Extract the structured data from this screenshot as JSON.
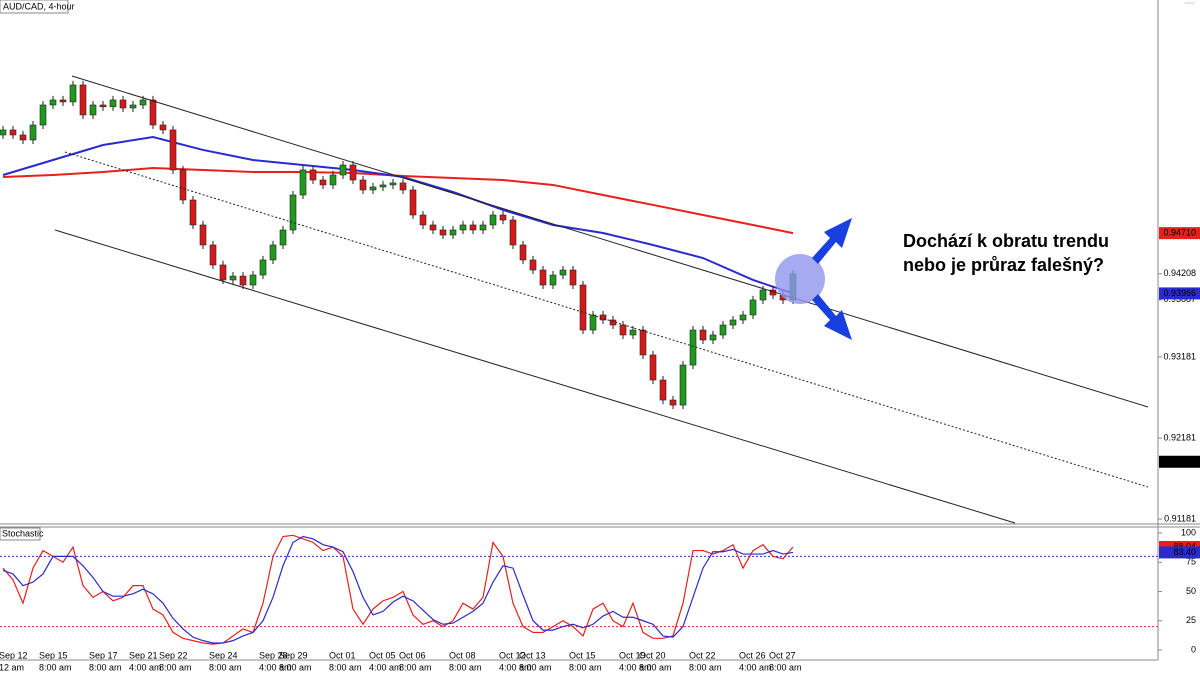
{
  "chart_data": [
    {
      "type": "candlestick",
      "title": "AUD/CAD, 4-hour",
      "annotation": [
        "Dochází k obratu trendu",
        "nebo je průraz falešný?"
      ],
      "categories": [
        "Sep 12",
        null,
        null,
        null,
        "Sep 15",
        null,
        null,
        null,
        null,
        "Sep 17",
        null,
        null,
        null,
        "Sep 21",
        null,
        null,
        "Sep 22",
        null,
        null,
        null,
        null,
        "Sep 24",
        null,
        null,
        null,
        null,
        "Sep 28",
        null,
        "Sep 29",
        null,
        null,
        null,
        null,
        "Oct 01",
        null,
        null,
        null,
        "Oct 05",
        null,
        null,
        "Oct 06",
        null,
        null,
        null,
        null,
        "Oct 08",
        null,
        null,
        null,
        null,
        "Oct 12",
        null,
        "Oct 13",
        null,
        null,
        null,
        null,
        "Oct 15",
        null,
        null,
        null,
        null,
        "Oct 19",
        null,
        "Oct 20",
        null,
        null,
        null,
        null,
        "Oct 22",
        null,
        null,
        null,
        null,
        "Oct 26",
        null,
        null,
        "Oct 27",
        null,
        null
      ],
      "times": [
        "12 am",
        null,
        null,
        null,
        "8:00 am",
        null,
        null,
        null,
        null,
        "8:00 am",
        null,
        null,
        null,
        "4:00 am",
        null,
        null,
        "8:00 am",
        null,
        null,
        null,
        null,
        "8:00 am",
        null,
        null,
        null,
        null,
        "4:00 am",
        null,
        "8:00 am",
        null,
        null,
        null,
        null,
        "8:00 am",
        null,
        null,
        null,
        "4:00 am",
        null,
        null,
        "8:00 am",
        null,
        null,
        null,
        null,
        "8:00 am",
        null,
        null,
        null,
        null,
        "4:00 am",
        null,
        "8:00 am",
        null,
        null,
        null,
        null,
        "8:00 am",
        null,
        null,
        null,
        null,
        "4:00 am",
        null,
        "8:00 am",
        null,
        null,
        null,
        null,
        "8:00 am",
        null,
        null,
        null,
        null,
        "4:00 am",
        null,
        null,
        "8:00 am",
        null,
        null
      ],
      "open": [
        0.95922,
        0.95984,
        0.95922,
        0.9586,
        0.96045,
        0.96292,
        0.96354,
        0.9633,
        0.96539,
        0.96169,
        0.96292,
        0.9627,
        0.96354,
        0.96255,
        0.96292,
        0.96354,
        0.96045,
        0.95984,
        0.9549,
        0.95119,
        0.94811,
        0.94564,
        0.94317,
        0.94132,
        0.9418,
        0.9407,
        0.94193,
        0.94379,
        0.94564,
        0.94749,
        0.95181,
        0.9549,
        0.95366,
        0.95305,
        0.95428,
        0.95551,
        0.95366,
        0.95243,
        0.9528,
        0.95305,
        0.9533,
        0.95243,
        0.94934,
        0.94811,
        0.94749,
        0.94687,
        0.94749,
        0.94811,
        0.94749,
        0.94811,
        0.94934,
        0.94872,
        0.94564,
        0.94379,
        0.94255,
        0.9407,
        0.94193,
        0.94255,
        0.9407,
        0.93514,
        0.937,
        0.93638,
        0.93576,
        0.93453,
        0.93514,
        0.93206,
        0.92897,
        0.9265,
        0.92588,
        0.93082,
        0.93514,
        0.93391,
        0.93453,
        0.93576,
        0.93638,
        0.937,
        0.93885,
        0.94008,
        0.93946,
        0.93885
      ],
      "high": [
        0.96034,
        0.96034,
        0.95972,
        0.96095,
        0.96342,
        0.96404,
        0.96404,
        0.96589,
        0.96589,
        0.96342,
        0.96342,
        0.96404,
        0.96404,
        0.96342,
        0.96404,
        0.96404,
        0.96095,
        0.96034,
        0.9554,
        0.95169,
        0.94861,
        0.94614,
        0.94367,
        0.9423,
        0.9423,
        0.94243,
        0.94429,
        0.94614,
        0.94799,
        0.95231,
        0.9554,
        0.9554,
        0.95416,
        0.95478,
        0.95601,
        0.95601,
        0.95416,
        0.9533,
        0.95355,
        0.9538,
        0.9538,
        0.95293,
        0.94984,
        0.94861,
        0.94799,
        0.94799,
        0.94861,
        0.94861,
        0.94861,
        0.94984,
        0.94984,
        0.94922,
        0.94614,
        0.94429,
        0.94305,
        0.94243,
        0.94305,
        0.94305,
        0.9412,
        0.9375,
        0.9375,
        0.93688,
        0.93626,
        0.93564,
        0.93564,
        0.93256,
        0.92947,
        0.927,
        0.93132,
        0.93564,
        0.93564,
        0.93503,
        0.93626,
        0.93688,
        0.9375,
        0.93935,
        0.94058,
        0.94058,
        0.93996,
        0.94258
      ],
      "low": [
        0.95872,
        0.95872,
        0.9581,
        0.9581,
        0.95995,
        0.96242,
        0.9628,
        0.9628,
        0.96119,
        0.96119,
        0.9622,
        0.9622,
        0.96205,
        0.96205,
        0.96242,
        0.95995,
        0.95934,
        0.9544,
        0.95069,
        0.94761,
        0.94514,
        0.94267,
        0.94082,
        0.94082,
        0.9402,
        0.9402,
        0.94143,
        0.94329,
        0.94514,
        0.94699,
        0.95131,
        0.95316,
        0.95255,
        0.95255,
        0.95378,
        0.95316,
        0.95193,
        0.95193,
        0.9523,
        0.95255,
        0.95193,
        0.94884,
        0.94761,
        0.94699,
        0.94637,
        0.94637,
        0.94699,
        0.94699,
        0.94699,
        0.94761,
        0.94822,
        0.94514,
        0.94329,
        0.94205,
        0.9402,
        0.9402,
        0.94143,
        0.9402,
        0.93464,
        0.93464,
        0.93588,
        0.93526,
        0.93403,
        0.93403,
        0.93156,
        0.92847,
        0.926,
        0.92538,
        0.92538,
        0.93032,
        0.93341,
        0.93341,
        0.93403,
        0.93526,
        0.93588,
        0.9365,
        0.93835,
        0.93896,
        0.93835,
        0.93835
      ],
      "close": [
        0.95984,
        0.95922,
        0.9586,
        0.96045,
        0.96292,
        0.96354,
        0.9633,
        0.96539,
        0.96169,
        0.96292,
        0.9627,
        0.96354,
        0.96255,
        0.96292,
        0.96354,
        0.96045,
        0.95984,
        0.9549,
        0.95119,
        0.94811,
        0.94564,
        0.94317,
        0.94132,
        0.9418,
        0.9407,
        0.94193,
        0.94379,
        0.94564,
        0.94749,
        0.95181,
        0.9549,
        0.95366,
        0.95305,
        0.95428,
        0.95551,
        0.95366,
        0.95243,
        0.9528,
        0.95305,
        0.9533,
        0.95243,
        0.94934,
        0.94811,
        0.94749,
        0.94687,
        0.94749,
        0.94811,
        0.94749,
        0.94811,
        0.94934,
        0.94872,
        0.94564,
        0.94379,
        0.94255,
        0.9407,
        0.94193,
        0.94255,
        0.9407,
        0.93514,
        0.937,
        0.93638,
        0.93576,
        0.93453,
        0.93514,
        0.93206,
        0.92897,
        0.9265,
        0.92588,
        0.93082,
        0.93514,
        0.93391,
        0.93453,
        0.93576,
        0.93638,
        0.937,
        0.93885,
        0.94008,
        0.93946,
        0.93885,
        0.94208
      ],
      "up_color": "#1f9a1f",
      "down_color": "#d41a1a",
      "lines": [
        {
          "color": "#e8201c",
          "x": [
            0,
            5,
            10,
            15,
            20,
            25,
            30,
            35,
            40,
            45,
            50,
            55,
            60,
            65,
            70,
            75,
            79
          ],
          "values": [
            0.95403,
            0.95428,
            0.95465,
            0.95514,
            0.9549,
            0.95465,
            0.95465,
            0.95453,
            0.95416,
            0.95391,
            0.95366,
            0.95305,
            0.95181,
            0.95058,
            0.94934,
            0.94811,
            0.9471
          ]
        },
        {
          "color": "#2a2ad0",
          "x": [
            0,
            5,
            10,
            15,
            20,
            25,
            30,
            35,
            40,
            45,
            50,
            55,
            60,
            65,
            70,
            75,
            79
          ],
          "values": [
            0.95428,
            0.95613,
            0.95798,
            0.95897,
            0.95737,
            0.95613,
            0.95551,
            0.9549,
            0.95403,
            0.95218,
            0.94996,
            0.94811,
            0.94712,
            0.94564,
            0.94403,
            0.94132,
            0.93966
          ]
        }
      ],
      "ylim": [
        0.91132,
        0.97588
      ],
      "yticks": [
        0.91181,
        0.92181,
        0.93181
      ],
      "markers": [
        {
          "value": 0.93887
        },
        {
          "value": 0.9471,
          "label": "0.94710",
          "color": "#e8201c"
        },
        {
          "value": 0.94208
        },
        {
          "value": 0.93966,
          "color": "#2a2ad0"
        },
        {
          "value": 0.91888,
          "color": "#000000"
        }
      ]
    },
    {
      "type": "line",
      "title": "Stochastic",
      "series": [
        {
          "color": "#e8201c",
          "values": [
            70,
            60,
            40,
            70,
            85,
            80,
            75,
            88,
            55,
            45,
            50,
            42,
            45,
            55,
            55,
            35,
            30,
            15,
            10,
            8,
            6,
            5,
            6,
            12,
            18,
            15,
            40,
            80,
            97,
            98,
            95,
            92,
            85,
            88,
            80,
            35,
            22,
            35,
            42,
            45,
            50,
            30,
            22,
            25,
            20,
            25,
            40,
            35,
            45,
            92,
            80,
            40,
            20,
            15,
            15,
            20,
            25,
            20,
            12,
            35,
            40,
            25,
            20,
            40,
            15,
            10,
            10,
            12,
            40,
            85,
            85,
            82,
            85,
            90,
            70,
            85,
            90,
            80,
            78,
            88.04
          ]
        },
        {
          "color": "#2a2ad0",
          "values": [
            68,
            65,
            55,
            58,
            65,
            80,
            80,
            80,
            72,
            62,
            50,
            46,
            46,
            48,
            52,
            48,
            40,
            27,
            18,
            11,
            8,
            6,
            6,
            8,
            12,
            15,
            25,
            45,
            72,
            92,
            97,
            95,
            90,
            88,
            84,
            67,
            45,
            30,
            33,
            41,
            46,
            42,
            34,
            26,
            22,
            23,
            28,
            33,
            40,
            58,
            72,
            70,
            47,
            25,
            17,
            17,
            20,
            22,
            19,
            22,
            29,
            33,
            28,
            28,
            25,
            22,
            12,
            11,
            20,
            45,
            70,
            84,
            84,
            86,
            82,
            82,
            82,
            85,
            82,
            83.4
          ]
        }
      ],
      "ylim": [
        0,
        100
      ],
      "yticks": [
        0,
        25,
        50,
        75,
        100
      ],
      "levels": [
        {
          "value": 80,
          "color": "#2a2ad0"
        },
        {
          "value": 20,
          "color": "#e8201c"
        }
      ],
      "markers": [
        {
          "value": 88.04,
          "color": "#e8201c"
        },
        {
          "value": 83.4,
          "label": "83.40",
          "color": "#2a2ad0"
        }
      ]
    }
  ]
}
